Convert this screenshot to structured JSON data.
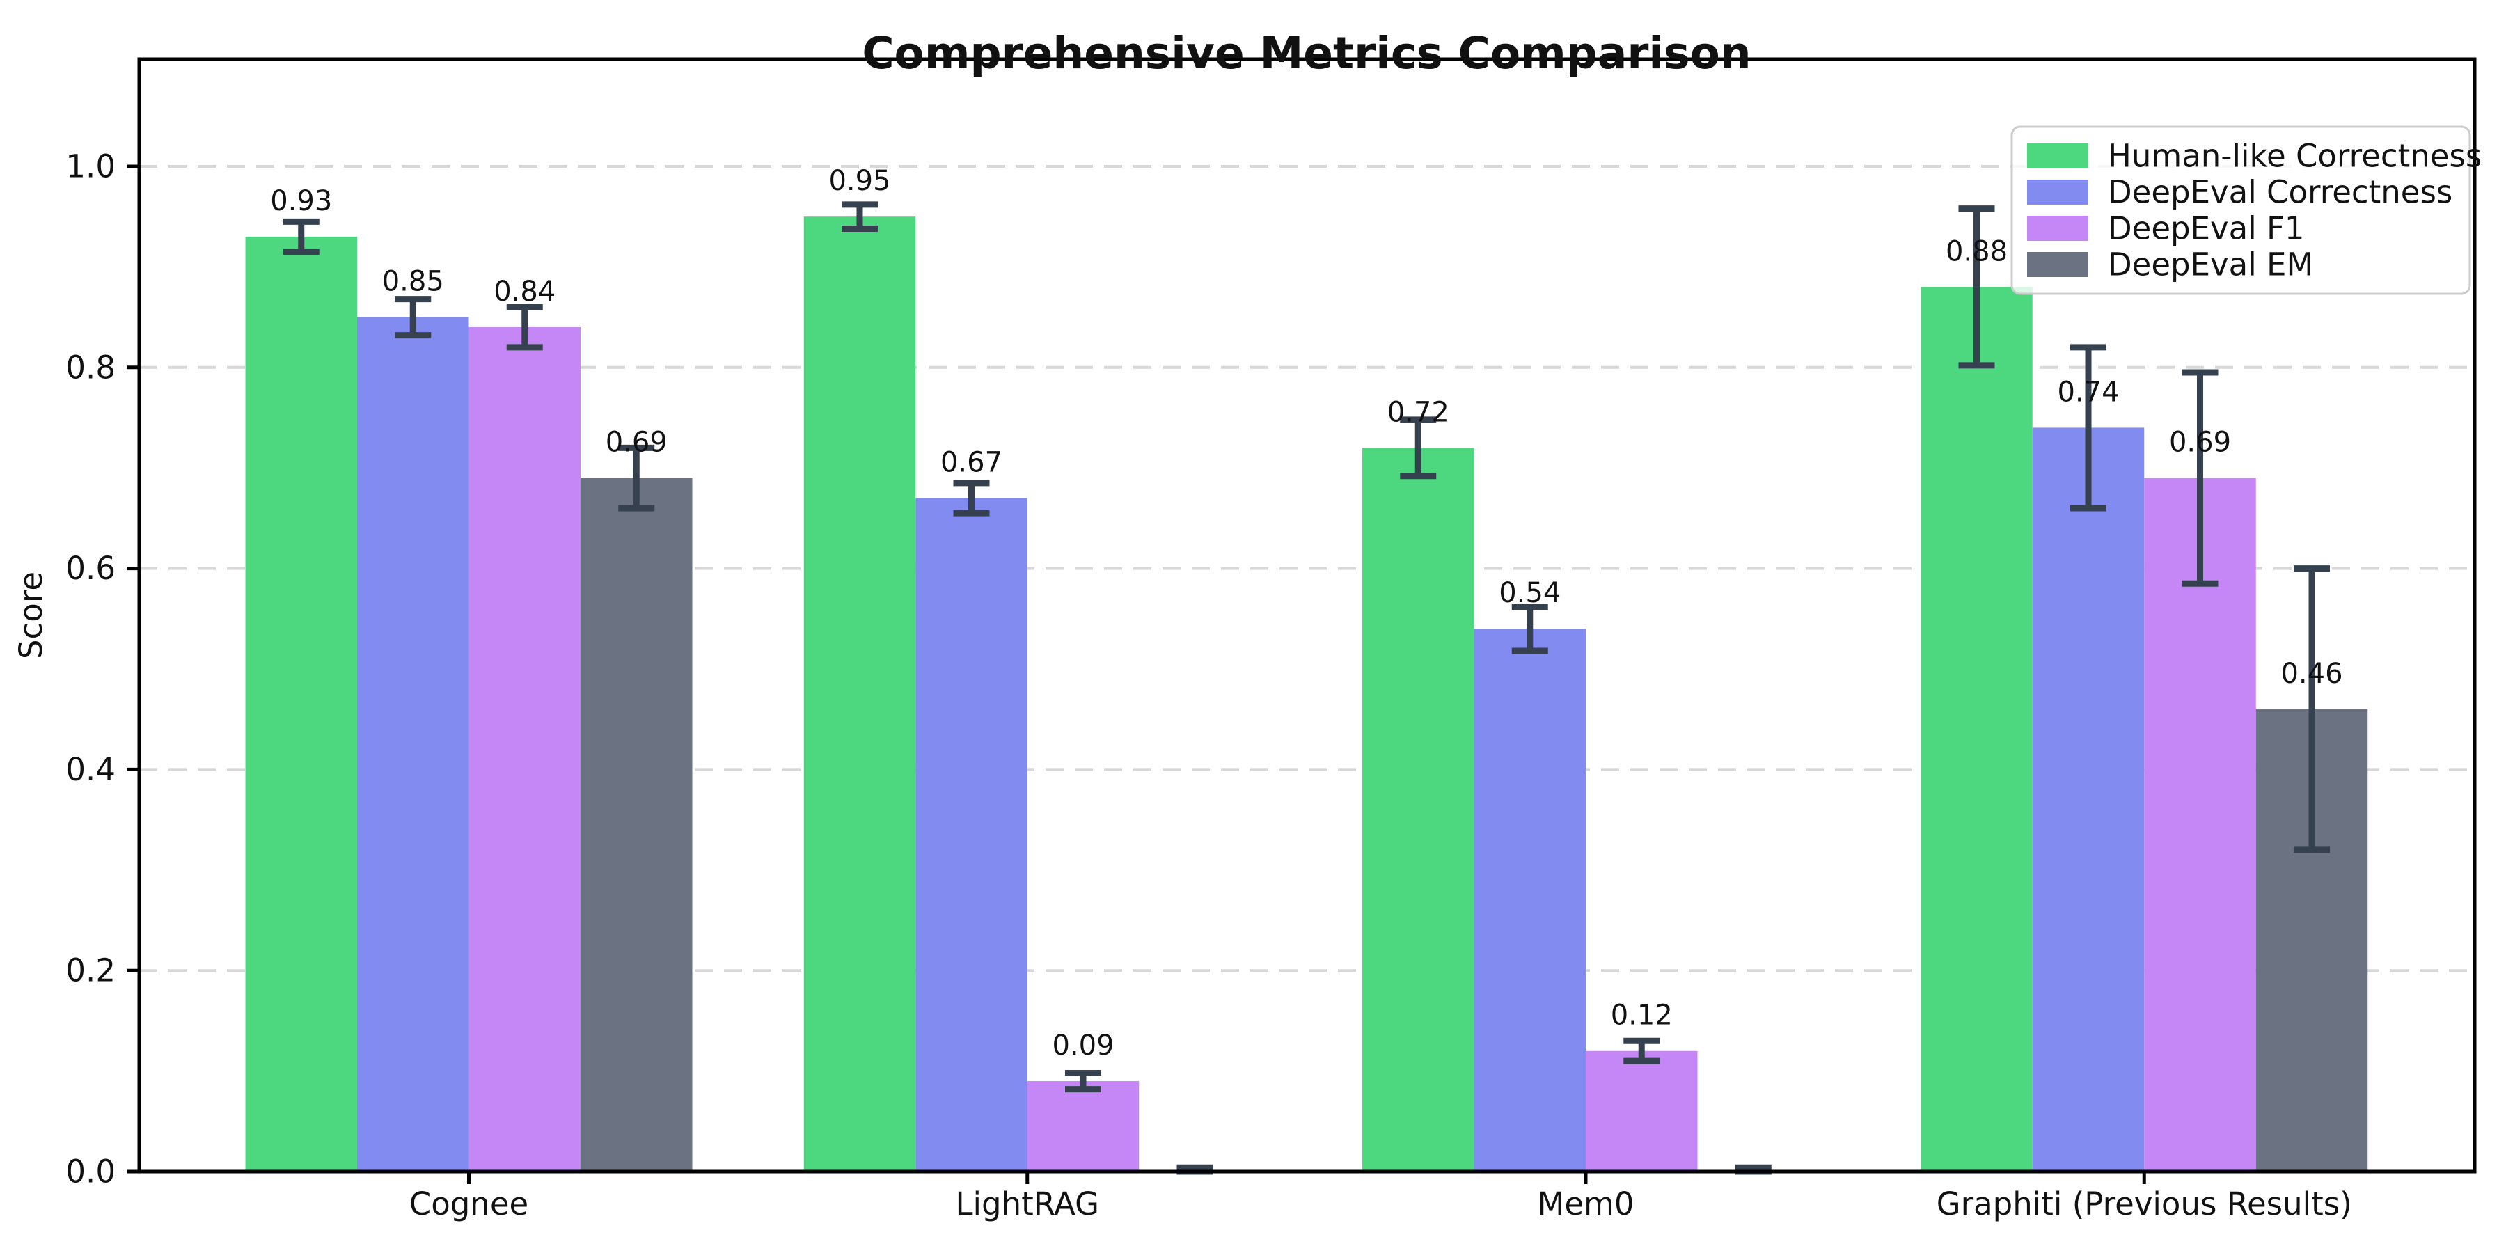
{
  "page": {
    "background_color": "#ffffff"
  },
  "chart_data": {
    "type": "bar",
    "title": "Comprehensive Metrics Comparison",
    "ylabel": "Score",
    "xlabel": "",
    "categories": [
      "Cognee",
      "LightRAG",
      "Mem0",
      "Graphiti (Previous Results)"
    ],
    "series": [
      {
        "name": "Human-like Correctness",
        "color": "#4dd87f",
        "values": [
          0.93,
          0.95,
          0.72,
          0.88
        ],
        "errors": [
          0.015,
          0.012,
          0.028,
          0.078
        ],
        "labels": [
          "0.93",
          "0.95",
          "0.72",
          "0.88"
        ]
      },
      {
        "name": "DeepEval Correctness",
        "color": "#828bf0",
        "values": [
          0.85,
          0.67,
          0.54,
          0.74
        ],
        "errors": [
          0.018,
          0.015,
          0.022,
          0.08
        ],
        "labels": [
          "0.85",
          "0.67",
          "0.54",
          "0.74"
        ]
      },
      {
        "name": "DeepEval F1",
        "color": "#c586f6",
        "values": [
          0.84,
          0.09,
          0.12,
          0.69
        ],
        "errors": [
          0.02,
          0.008,
          0.01,
          0.105
        ],
        "labels": [
          "0.84",
          "0.09",
          "0.12",
          "0.69"
        ]
      },
      {
        "name": "DeepEval EM",
        "color": "#6b7383",
        "values": [
          0.69,
          0.0,
          0.0,
          0.46
        ],
        "errors": [
          0.03,
          0.004,
          0.004,
          0.14
        ],
        "labels": [
          "0.69",
          null,
          null,
          "0.46"
        ]
      }
    ],
    "yticks": [
      "0.0",
      "0.2",
      "0.4",
      "0.6",
      "0.8",
      "1.0"
    ],
    "ytick_values": [
      0.0,
      0.2,
      0.4,
      0.6,
      0.8,
      1.0
    ],
    "ylim": [
      0,
      1.107
    ],
    "grid": "horizontal dashed",
    "grid_color": "#d7d7d7",
    "legend_position": "upper right",
    "error_bar_color": "#36414f",
    "axis_color": "#000000",
    "text_color": "#111111"
  }
}
